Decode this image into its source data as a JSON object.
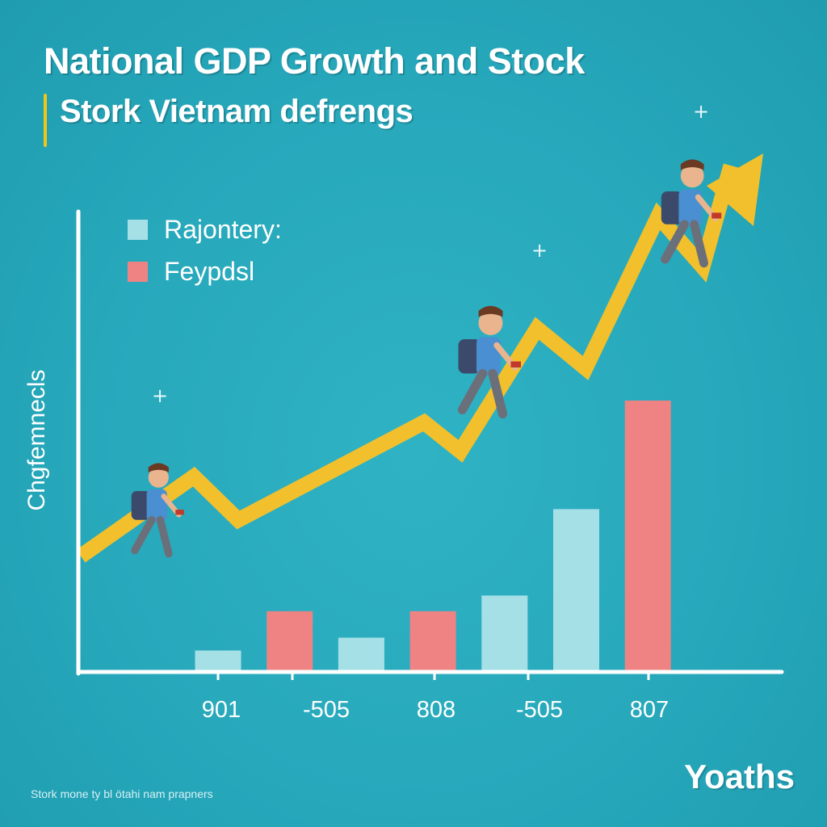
{
  "title": "National GDP Growth and Stock",
  "subtitle": "Stork Vietnam defrengs",
  "footer": "Stork mone ty bl ötahi nam prapners",
  "corner_label": "Yoaths",
  "colors": {
    "background": "#27a8bb",
    "light_bar": "#a6e0e7",
    "red_bar": "#ef8383",
    "trend_line": "#f2c02c",
    "axis": "#ffffff"
  },
  "legend": [
    {
      "label": "Rajontery:",
      "color": "#a6e0e7"
    },
    {
      "label": "Feypdsl",
      "color": "#ef8383"
    }
  ],
  "chart_data": {
    "type": "bar",
    "ylabel": "Chgfemnecls",
    "xlabel": "Yoaths",
    "ylim": [
      0,
      380
    ],
    "grid": false,
    "legend_position": "top-left",
    "x_tick_labels": [
      "901",
      "-505",
      "808",
      "-505",
      "807"
    ],
    "bars": [
      {
        "series": "Rajontery:",
        "value": 30
      },
      {
        "series": "Feypdsl",
        "value": 85
      },
      {
        "series": "Rajontery:",
        "value": 48
      },
      {
        "series": "Feypdsl",
        "value": 85
      },
      {
        "series": "Rajontery:",
        "value": 107
      },
      {
        "series": "Rajontery:",
        "value": 228
      },
      {
        "series": "Feypdsl",
        "value": 380
      }
    ],
    "trend_line": {
      "type": "line",
      "values": [
        160,
        270,
        210,
        345,
        305,
        475,
        420,
        630,
        560,
        700
      ]
    }
  }
}
